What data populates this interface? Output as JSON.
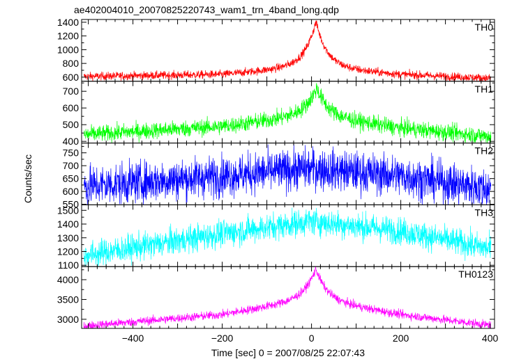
{
  "chart_data": {
    "type": "line",
    "title": "ae402004010_20070825220743_wam1_trn_4band_long.qdp",
    "xlabel": "Time [sec] 0 = 2007/08/25 22:07:43",
    "ylabel": "Counts/sec",
    "xlim": [
      -515,
      410
    ],
    "xticks": [
      -400,
      -200,
      0,
      200,
      400
    ],
    "panels": [
      {
        "name": "TH0",
        "color": "#ff0000",
        "ylim": [
          540,
          1440
        ],
        "yticks": [
          600,
          800,
          1000,
          1200,
          1400
        ],
        "baseline": {
          "x": [
            -510,
            -200,
            0,
            200,
            400
          ],
          "y": [
            610,
            640,
            760,
            640,
            585
          ]
        },
        "peak": {
          "x": 10,
          "value": 1410,
          "width": 25
        },
        "noise": 30
      },
      {
        "name": "TH1",
        "color": "#00ff00",
        "ylim": [
          390,
          760
        ],
        "yticks": [
          400,
          500,
          600,
          700
        ],
        "baseline": {
          "x": [
            -510,
            -200,
            0,
            200,
            400
          ],
          "y": [
            440,
            490,
            560,
            480,
            430
          ]
        },
        "peak": {
          "x": 12,
          "value": 720,
          "width": 25
        },
        "noise": 25
      },
      {
        "name": "TH2",
        "color": "#0000ff",
        "ylim": [
          548,
          788
        ],
        "yticks": [
          550,
          600,
          650,
          700,
          750
        ],
        "baseline": {
          "x": [
            -510,
            -200,
            0,
            200,
            400
          ],
          "y": [
            620,
            660,
            690,
            660,
            610
          ]
        },
        "peak": {
          "x": 0,
          "value": 0,
          "width": 25
        },
        "noise": 40
      },
      {
        "name": "TH3",
        "color": "#00ffff",
        "ylim": [
          1090,
          1540
        ],
        "yticks": [
          1100,
          1200,
          1300,
          1400,
          1500
        ],
        "baseline": {
          "x": [
            -510,
            -200,
            0,
            200,
            400
          ],
          "y": [
            1170,
            1330,
            1420,
            1350,
            1220
          ]
        },
        "peak": {
          "x": 0,
          "value": 0,
          "width": 25
        },
        "noise": 50
      },
      {
        "name": "TH0123",
        "color": "#ff00ff",
        "ylim": [
          2770,
          4330
        ],
        "yticks": [
          3000,
          3500,
          4000
        ],
        "baseline": {
          "x": [
            -510,
            -200,
            0,
            200,
            400
          ],
          "y": [
            2830,
            3120,
            3520,
            3120,
            2850
          ]
        },
        "peak": {
          "x": 10,
          "value": 4270,
          "width": 25
        },
        "noise": 55
      }
    ]
  }
}
